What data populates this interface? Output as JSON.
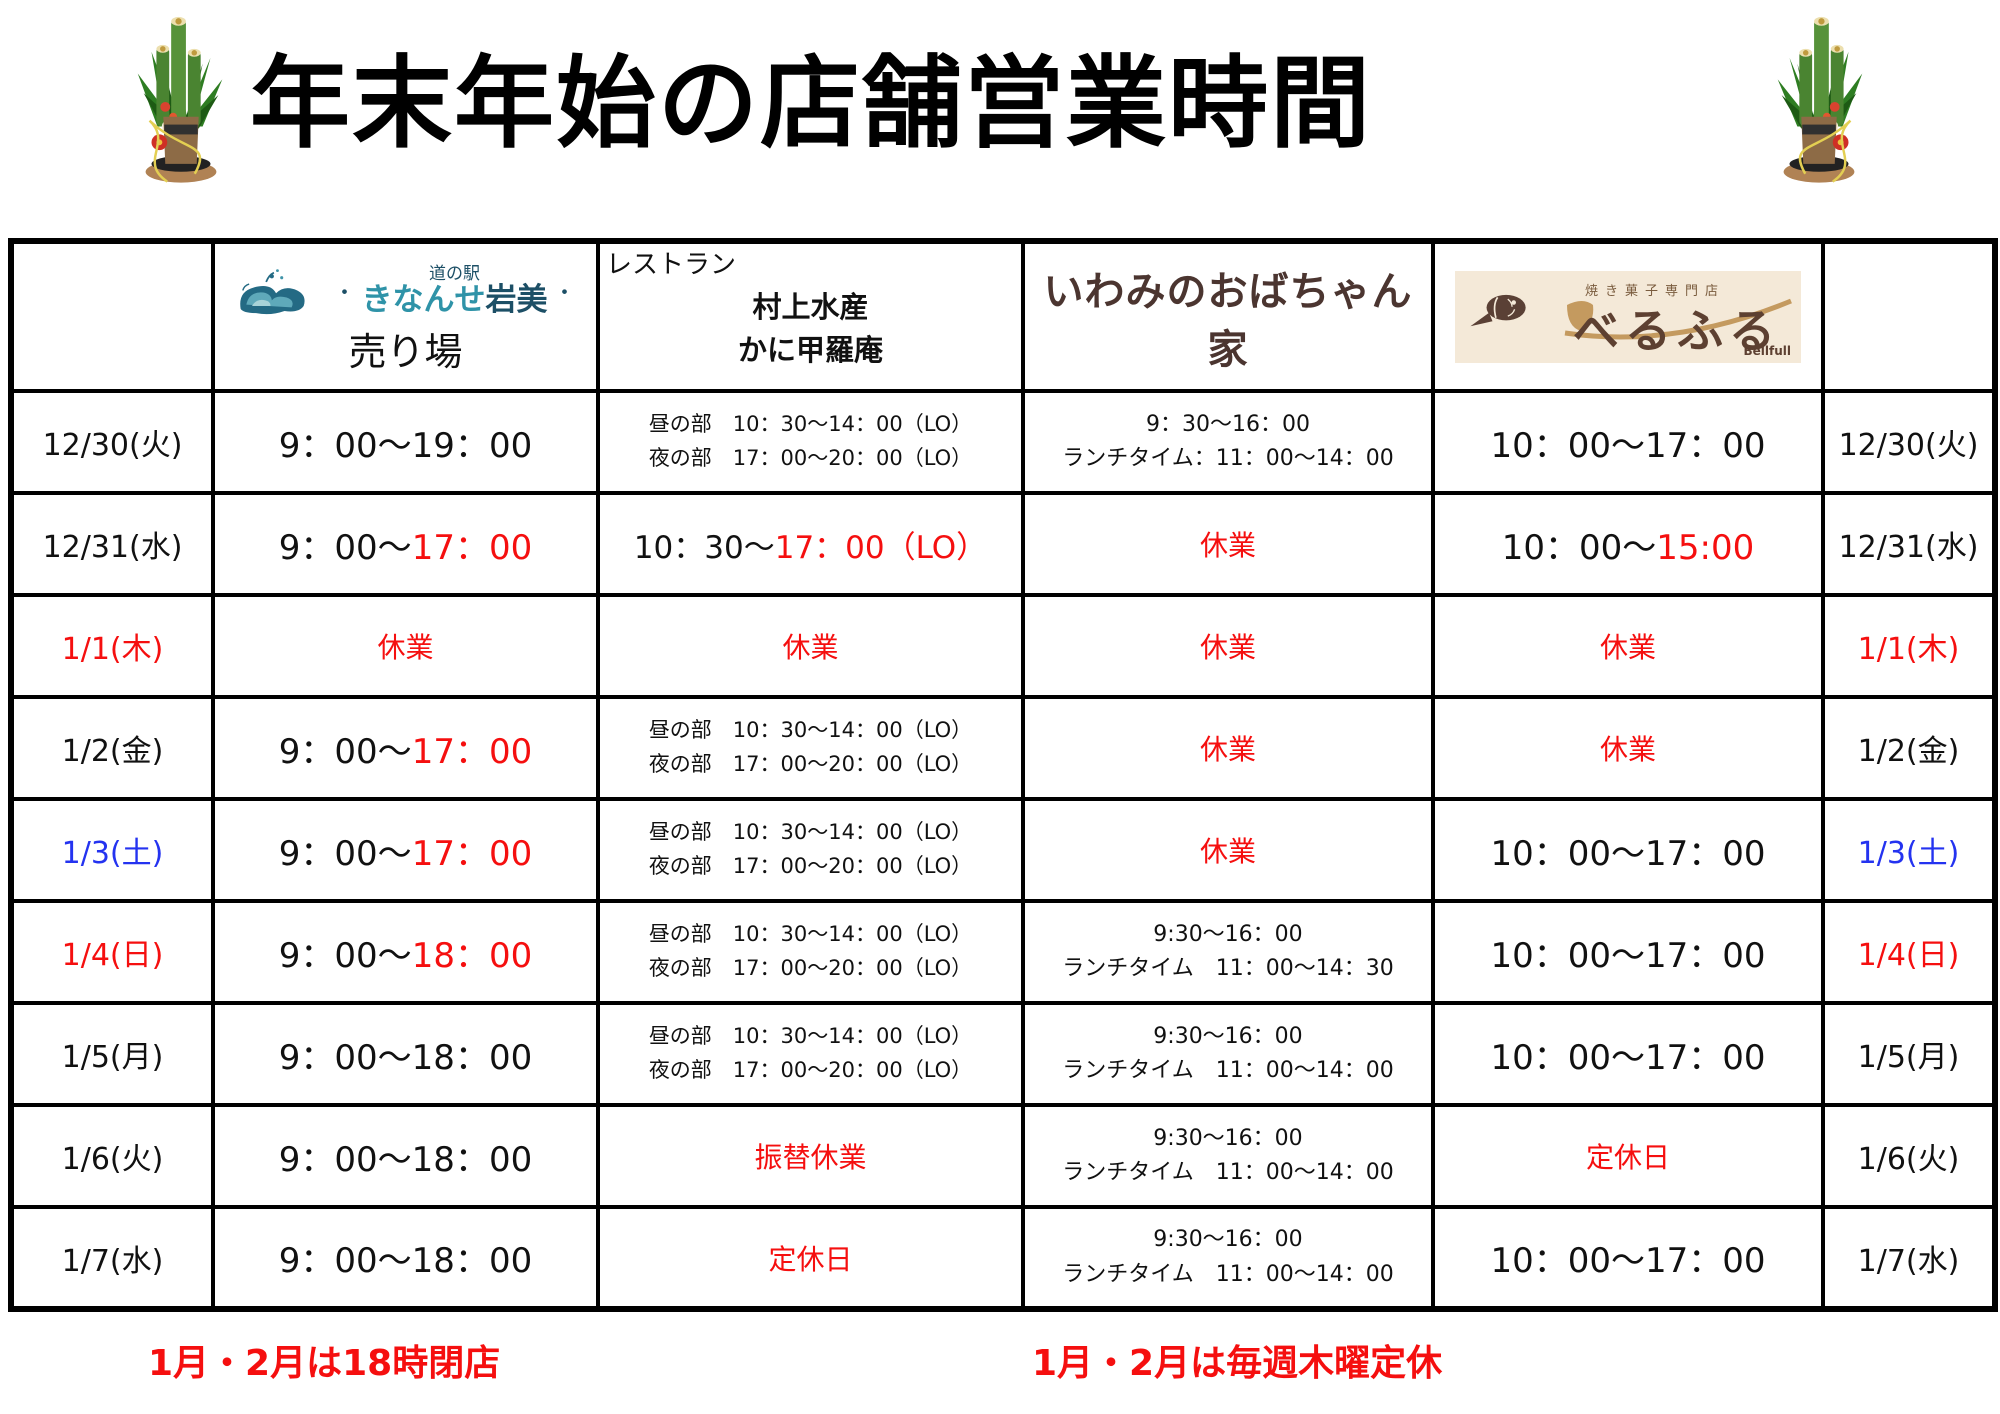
{
  "title": "年末年始の店舗営業時間",
  "colors": {
    "black": "#111111",
    "red": "#f50f0f",
    "blue": "#2433f0"
  },
  "header": {
    "store1": {
      "road_station": "道の駅",
      "name_part1": "きなんせ",
      "name_part2": "岩美",
      "sub": "売り場"
    },
    "store2": {
      "prefix": "レストラン",
      "name1": "村上水産",
      "name2": "かに甲羅庵"
    },
    "store3": {
      "name": "いわみのおばちゃん家"
    },
    "store4": {
      "tagline": "焼き菓子専門店",
      "name": "べるふる",
      "roman": "Bellfull"
    }
  },
  "rows": [
    {
      "date": "12/30(火)",
      "dc": "black",
      "cells": [
        {
          "size": "lg",
          "lines": [
            [
              {
                "t": "9：00～19：00",
                "c": "black"
              }
            ]
          ]
        },
        {
          "size": "sm",
          "align": "left",
          "lines": [
            [
              {
                "t": "昼の部　10：30～14：00（LO）",
                "c": "black"
              }
            ],
            [
              {
                "t": "夜の部　17：00～20：00（LO）",
                "c": "black"
              }
            ]
          ]
        },
        {
          "size": "smc",
          "lines": [
            [
              {
                "t": "9：30～16：00",
                "c": "black"
              }
            ],
            [
              {
                "t": "ランチタイム：11：00～14：00",
                "c": "black"
              }
            ]
          ]
        },
        {
          "size": "lg",
          "lines": [
            [
              {
                "t": "10：00～17：00",
                "c": "black"
              }
            ]
          ]
        }
      ]
    },
    {
      "date": "12/31(水)",
      "dc": "black",
      "cells": [
        {
          "size": "lg",
          "lines": [
            [
              {
                "t": "9：00～",
                "c": "black"
              },
              {
                "t": "17：00",
                "c": "red"
              }
            ]
          ]
        },
        {
          "size": "lg2",
          "lines": [
            [
              {
                "t": "10：30～",
                "c": "black"
              },
              {
                "t": "17：00（LO）",
                "c": "red"
              }
            ]
          ]
        },
        {
          "size": "md",
          "lines": [
            [
              {
                "t": "休業",
                "c": "red"
              }
            ]
          ]
        },
        {
          "size": "lg",
          "lines": [
            [
              {
                "t": "10：00～",
                "c": "black"
              },
              {
                "t": "15:00",
                "c": "red"
              }
            ]
          ]
        }
      ]
    },
    {
      "date": "1/1(木)",
      "dc": "red",
      "cells": [
        {
          "size": "md",
          "lines": [
            [
              {
                "t": "休業",
                "c": "red"
              }
            ]
          ]
        },
        {
          "size": "md",
          "lines": [
            [
              {
                "t": "休業",
                "c": "red"
              }
            ]
          ]
        },
        {
          "size": "md",
          "lines": [
            [
              {
                "t": "休業",
                "c": "red"
              }
            ]
          ]
        },
        {
          "size": "md",
          "lines": [
            [
              {
                "t": "休業",
                "c": "red"
              }
            ]
          ]
        }
      ]
    },
    {
      "date": "1/2(金)",
      "dc": "black",
      "cells": [
        {
          "size": "lg",
          "lines": [
            [
              {
                "t": "9：00～",
                "c": "black"
              },
              {
                "t": "17：00",
                "c": "red"
              }
            ]
          ]
        },
        {
          "size": "sm",
          "align": "left",
          "lines": [
            [
              {
                "t": "昼の部　10：30～14：00（LO）",
                "c": "black"
              }
            ],
            [
              {
                "t": "夜の部　17：00～20：00（LO）",
                "c": "black"
              }
            ]
          ]
        },
        {
          "size": "md",
          "lines": [
            [
              {
                "t": "休業",
                "c": "red"
              }
            ]
          ]
        },
        {
          "size": "md",
          "lines": [
            [
              {
                "t": "休業",
                "c": "red"
              }
            ]
          ]
        }
      ]
    },
    {
      "date": "1/3(土)",
      "dc": "blue",
      "cells": [
        {
          "size": "lg",
          "lines": [
            [
              {
                "t": "9：00～",
                "c": "black"
              },
              {
                "t": "17：00",
                "c": "red"
              }
            ]
          ]
        },
        {
          "size": "sm",
          "align": "left",
          "lines": [
            [
              {
                "t": "昼の部　10：30～14：00（LO）",
                "c": "black"
              }
            ],
            [
              {
                "t": "夜の部　17：00～20：00（LO）",
                "c": "black"
              }
            ]
          ]
        },
        {
          "size": "md",
          "lines": [
            [
              {
                "t": "休業",
                "c": "red"
              }
            ]
          ]
        },
        {
          "size": "lg",
          "lines": [
            [
              {
                "t": "10：00～17：00",
                "c": "black"
              }
            ]
          ]
        }
      ]
    },
    {
      "date": "1/4(日)",
      "dc": "red",
      "cells": [
        {
          "size": "lg",
          "lines": [
            [
              {
                "t": "9：00～",
                "c": "black"
              },
              {
                "t": "18：00",
                "c": "red"
              }
            ]
          ]
        },
        {
          "size": "sm",
          "align": "left",
          "lines": [
            [
              {
                "t": "昼の部　10：30～14：00（LO）",
                "c": "black"
              }
            ],
            [
              {
                "t": "夜の部　17：00～20：00（LO）",
                "c": "black"
              }
            ]
          ]
        },
        {
          "size": "smc",
          "lines": [
            [
              {
                "t": "9:30～16：00",
                "c": "black"
              }
            ],
            [
              {
                "t": "ランチタイム　11：00～14：30",
                "c": "black"
              }
            ]
          ]
        },
        {
          "size": "lg",
          "lines": [
            [
              {
                "t": "10：00～17：00",
                "c": "black"
              }
            ]
          ]
        }
      ]
    },
    {
      "date": "1/5(月)",
      "dc": "black",
      "cells": [
        {
          "size": "lg",
          "lines": [
            [
              {
                "t": "9：00～18：00",
                "c": "black"
              }
            ]
          ]
        },
        {
          "size": "sm",
          "align": "left",
          "lines": [
            [
              {
                "t": "昼の部　10：30～14：00（LO）",
                "c": "black"
              }
            ],
            [
              {
                "t": "夜の部　17：00～20：00（LO）",
                "c": "black"
              }
            ]
          ]
        },
        {
          "size": "smc",
          "lines": [
            [
              {
                "t": "9:30～16：00",
                "c": "black"
              }
            ],
            [
              {
                "t": "ランチタイム　11：00～14：00",
                "c": "black"
              }
            ]
          ]
        },
        {
          "size": "lg",
          "lines": [
            [
              {
                "t": "10：00～17：00",
                "c": "black"
              }
            ]
          ]
        }
      ]
    },
    {
      "date": "1/6(火)",
      "dc": "black",
      "cells": [
        {
          "size": "lg",
          "lines": [
            [
              {
                "t": "9：00～18：00",
                "c": "black"
              }
            ]
          ]
        },
        {
          "size": "md",
          "lines": [
            [
              {
                "t": "振替休業",
                "c": "red"
              }
            ]
          ]
        },
        {
          "size": "smc",
          "lines": [
            [
              {
                "t": "9:30～16：00",
                "c": "black"
              }
            ],
            [
              {
                "t": "ランチタイム　11：00～14：00",
                "c": "black"
              }
            ]
          ]
        },
        {
          "size": "md",
          "lines": [
            [
              {
                "t": "定休日",
                "c": "red"
              }
            ]
          ]
        }
      ]
    },
    {
      "date": "1/7(水)",
      "dc": "black",
      "cells": [
        {
          "size": "lg",
          "lines": [
            [
              {
                "t": "9：00～18：00",
                "c": "black"
              }
            ]
          ]
        },
        {
          "size": "md",
          "lines": [
            [
              {
                "t": "定休日",
                "c": "red"
              }
            ]
          ]
        },
        {
          "size": "smc",
          "lines": [
            [
              {
                "t": "9:30～16：00",
                "c": "black"
              }
            ],
            [
              {
                "t": "ランチタイム　11：00～14：00",
                "c": "black"
              }
            ]
          ]
        },
        {
          "size": "lg",
          "lines": [
            [
              {
                "t": "10：00～17：00",
                "c": "black"
              }
            ]
          ]
        }
      ]
    }
  ],
  "notes": [
    {
      "text": "1月・2月は18時閉店"
    },
    {
      "text": "1月・2月は毎週木曜定休"
    }
  ]
}
